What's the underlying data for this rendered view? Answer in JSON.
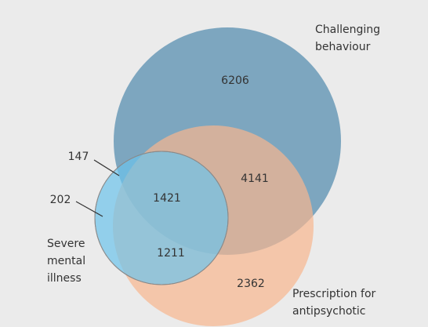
{
  "chart_data": {
    "type": "venn",
    "sets": [
      {
        "label": [
          "Challenging",
          "behaviour"
        ],
        "color": "#7da6bf"
      },
      {
        "label": [
          "Prescription for",
          "antipsychotic"
        ],
        "color": "#f8b68e"
      },
      {
        "label": [
          "Severe",
          "mental",
          "illness"
        ],
        "color": "#6cc3eb"
      }
    ],
    "regions": [
      {
        "sets": [
          0
        ],
        "value": 6206
      },
      {
        "sets": [
          0,
          1
        ],
        "value": 4141
      },
      {
        "sets": [
          0,
          1,
          2
        ],
        "value": 1421
      },
      {
        "sets": [
          1,
          2
        ],
        "value": 1211
      },
      {
        "sets": [
          1
        ],
        "value": 2362
      },
      {
        "sets": [
          0,
          2
        ],
        "value": 147
      },
      {
        "sets": [
          2
        ],
        "value": 202
      }
    ]
  }
}
